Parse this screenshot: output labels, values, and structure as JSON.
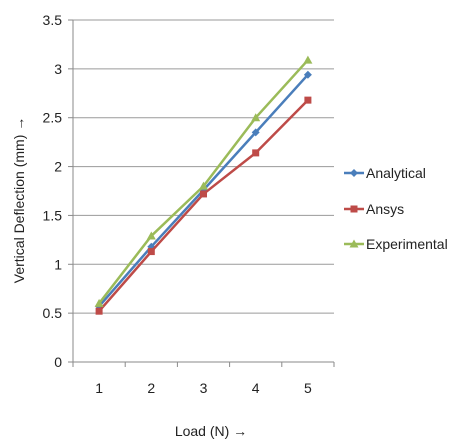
{
  "chart_data": {
    "type": "line",
    "xlabel": "Load (N) →",
    "ylabel": "Vertical Deflection (mm) →",
    "categories": [
      "1",
      "2",
      "3",
      "4",
      "5"
    ],
    "y_ticks": [
      "0",
      "0.5",
      "1",
      "1.5",
      "2",
      "2.5",
      "3",
      "3.5"
    ],
    "ylim": [
      0,
      3.5
    ],
    "grid": "horizontal",
    "legend_position": "right",
    "series": [
      {
        "name": "Analytical",
        "color": "#4A7EBB",
        "marker": "diamond",
        "values": [
          0.57,
          1.18,
          1.76,
          2.35,
          2.94
        ]
      },
      {
        "name": "Ansys",
        "color": "#BE4B48",
        "marker": "square",
        "values": [
          0.52,
          1.13,
          1.72,
          2.14,
          2.68
        ]
      },
      {
        "name": "Experimental",
        "color": "#9BBB59",
        "marker": "triangle",
        "values": [
          0.6,
          1.29,
          1.8,
          2.5,
          3.09
        ]
      }
    ]
  }
}
